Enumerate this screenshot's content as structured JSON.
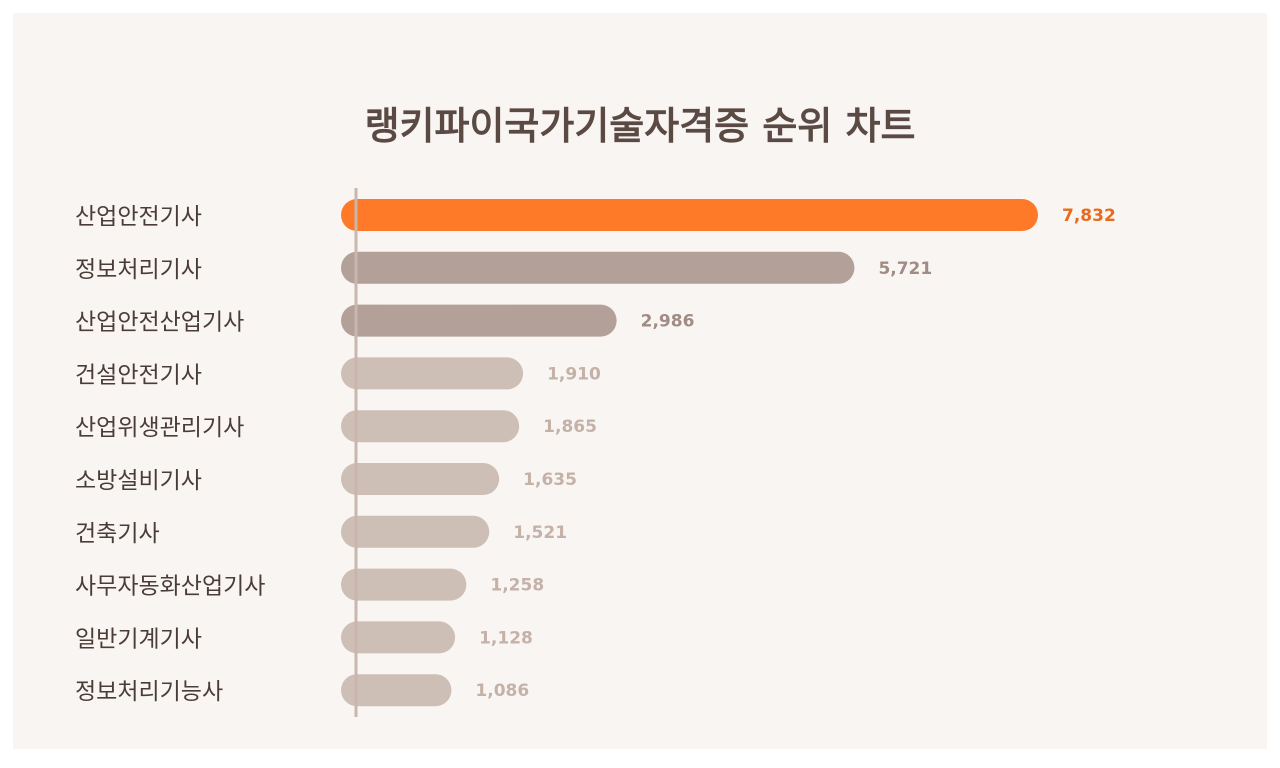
{
  "chart_data": {
    "type": "bar",
    "orientation": "horizontal",
    "title": "랭키파이국가기술자격증 순위 차트",
    "xlabel": "",
    "ylabel": "",
    "categories": [
      "산업안전기사",
      "정보처리기사",
      "산업안전산업기사",
      "건설안전기사",
      "산업위생관리기사",
      "소방설비기사",
      "건축기사",
      "사무자동화산업기사",
      "일반기계기사",
      "정보처리기능사"
    ],
    "values": [
      7832,
      5721,
      2986,
      1910,
      1865,
      1635,
      1521,
      1258,
      1128,
      1086
    ],
    "value_labels": [
      "7,832",
      "5,721",
      "2,986",
      "1,910",
      "1,865",
      "1,635",
      "1,521",
      "1,258",
      "1,128",
      "1,086"
    ],
    "xlim": [
      0,
      7832
    ],
    "grid": false,
    "legend": "none",
    "colors": {
      "highlight": "#ff7a28",
      "highlight_label": "#e86a1c",
      "mid": "#b2a099",
      "mid_label": "#a08c84",
      "light": "#cebfb6",
      "light_label": "#c4b2a8",
      "axis": "#c9b6ad",
      "category_text": "#4a3d38",
      "title_text": "#5a4a43",
      "background": "#f9f5f3"
    }
  }
}
